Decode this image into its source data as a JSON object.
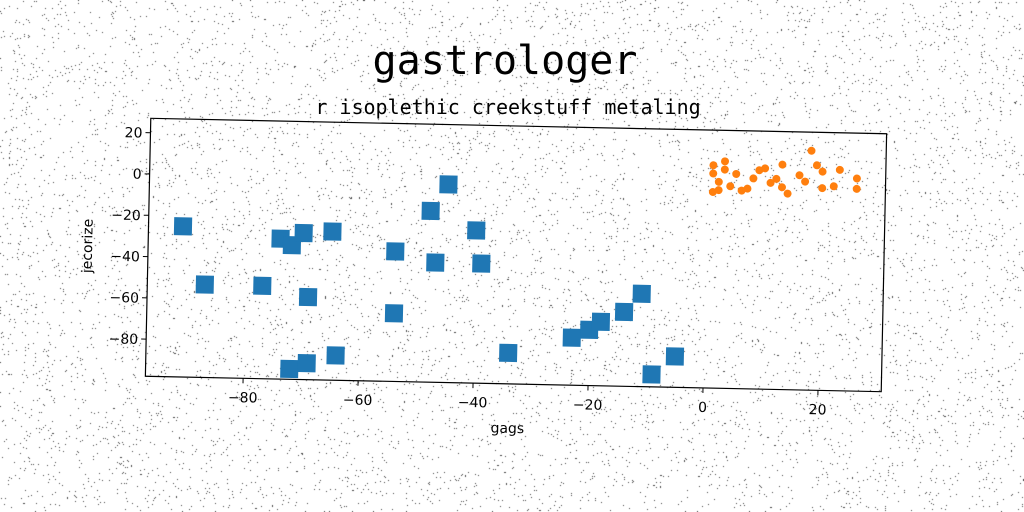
{
  "chart_data": {
    "type": "scatter",
    "title": "gastrologer",
    "subtitle": "r isoplethic creekstuff metaling",
    "xlabel": "gags",
    "ylabel": "jecorize",
    "xlim": [
      -97,
      31
    ],
    "ylim": [
      -98,
      27
    ],
    "x_ticks": [
      -80,
      -60,
      -40,
      -20,
      0,
      20
    ],
    "y_ticks": [
      20,
      0,
      -20,
      -40,
      -60,
      -80
    ],
    "x_tick_labels": [
      "−80",
      "−60",
      "−40",
      "−20",
      "0",
      "20"
    ],
    "y_tick_labels": [
      "20",
      "0",
      "−20",
      "−40",
      "−60",
      "−80"
    ],
    "grid": false,
    "series": [
      {
        "color": "#1f77b4",
        "marker": "square",
        "points": [
          {
            "x": -91,
            "y": -25
          },
          {
            "x": -87,
            "y": -53
          },
          {
            "x": -77,
            "y": -53
          },
          {
            "x": -74,
            "y": -30
          },
          {
            "x": -72,
            "y": -33
          },
          {
            "x": -70,
            "y": -27
          },
          {
            "x": -65,
            "y": -26
          },
          {
            "x": -69,
            "y": -58
          },
          {
            "x": -72,
            "y": -93
          },
          {
            "x": -69,
            "y": -90
          },
          {
            "x": -64,
            "y": -86
          },
          {
            "x": -54,
            "y": -35
          },
          {
            "x": -54,
            "y": -65
          },
          {
            "x": -48,
            "y": -15
          },
          {
            "x": -47,
            "y": -40
          },
          {
            "x": -45,
            "y": -2
          },
          {
            "x": -40,
            "y": -24
          },
          {
            "x": -39,
            "y": -40
          },
          {
            "x": -34,
            "y": -83
          },
          {
            "x": -23,
            "y": -75
          },
          {
            "x": -20,
            "y": -71
          },
          {
            "x": -18,
            "y": -67
          },
          {
            "x": -14,
            "y": -62
          },
          {
            "x": -11,
            "y": -53
          },
          {
            "x": -9,
            "y": -92
          },
          {
            "x": -5,
            "y": -83
          }
        ]
      },
      {
        "color": "#ff7f0e",
        "marker": "circle",
        "points": [
          {
            "x": 1,
            "y": 10
          },
          {
            "x": 1,
            "y": 6
          },
          {
            "x": 1,
            "y": -3
          },
          {
            "x": 2,
            "y": -2
          },
          {
            "x": 2,
            "y": 2
          },
          {
            "x": 3,
            "y": 12
          },
          {
            "x": 3,
            "y": 8
          },
          {
            "x": 4,
            "y": 0
          },
          {
            "x": 5,
            "y": 6
          },
          {
            "x": 6,
            "y": -2
          },
          {
            "x": 7,
            "y": -1
          },
          {
            "x": 8,
            "y": 4
          },
          {
            "x": 9,
            "y": 8
          },
          {
            "x": 10,
            "y": 9
          },
          {
            "x": 11,
            "y": 2
          },
          {
            "x": 12,
            "y": 4
          },
          {
            "x": 13,
            "y": 0
          },
          {
            "x": 13,
            "y": 11
          },
          {
            "x": 14,
            "y": -3
          },
          {
            "x": 16,
            "y": 6
          },
          {
            "x": 17,
            "y": 3
          },
          {
            "x": 18,
            "y": 18
          },
          {
            "x": 19,
            "y": 11
          },
          {
            "x": 20,
            "y": 0
          },
          {
            "x": 20,
            "y": 8
          },
          {
            "x": 22,
            "y": 1
          },
          {
            "x": 23,
            "y": 9
          },
          {
            "x": 26,
            "y": 5
          },
          {
            "x": 26,
            "y": 0
          }
        ]
      }
    ]
  }
}
